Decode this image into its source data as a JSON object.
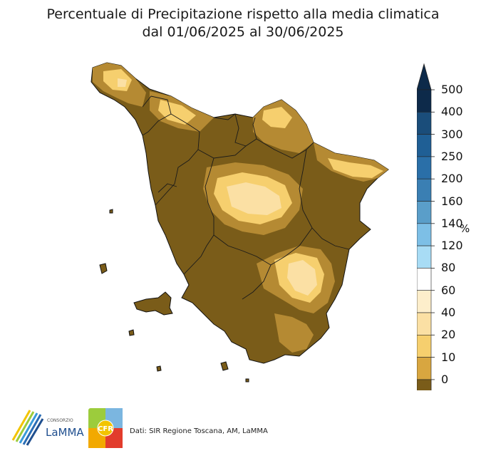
{
  "title": {
    "line1": "Percentuale di Precipitazione rispetto alla media climatica",
    "line2": "dal 01/06/2025 al 30/06/2025"
  },
  "legend": {
    "unit": "%",
    "ticks": [
      "500",
      "400",
      "300",
      "250",
      "200",
      "160",
      "140",
      "120",
      "80",
      "60",
      "40",
      "20",
      "10",
      "0"
    ],
    "colors": [
      "#0d2a4a",
      "#1a4d7a",
      "#1f5f95",
      "#2a6fa8",
      "#3a7fb3",
      "#5a9ec9",
      "#7dbfe6",
      "#a8dcf5",
      "#ffffff",
      "#fdeecb",
      "#fbe0a4",
      "#f6cf6e",
      "#d8a640",
      "#b58a33",
      "#7a5c19"
    ]
  },
  "logos": {
    "lamma_small": "CONSORZIO",
    "lamma_name": "LaMMA",
    "cfr_name": "CFR"
  },
  "footer": {
    "source": "Dati: SIR Regione Toscana, AM, LaMMA"
  }
}
